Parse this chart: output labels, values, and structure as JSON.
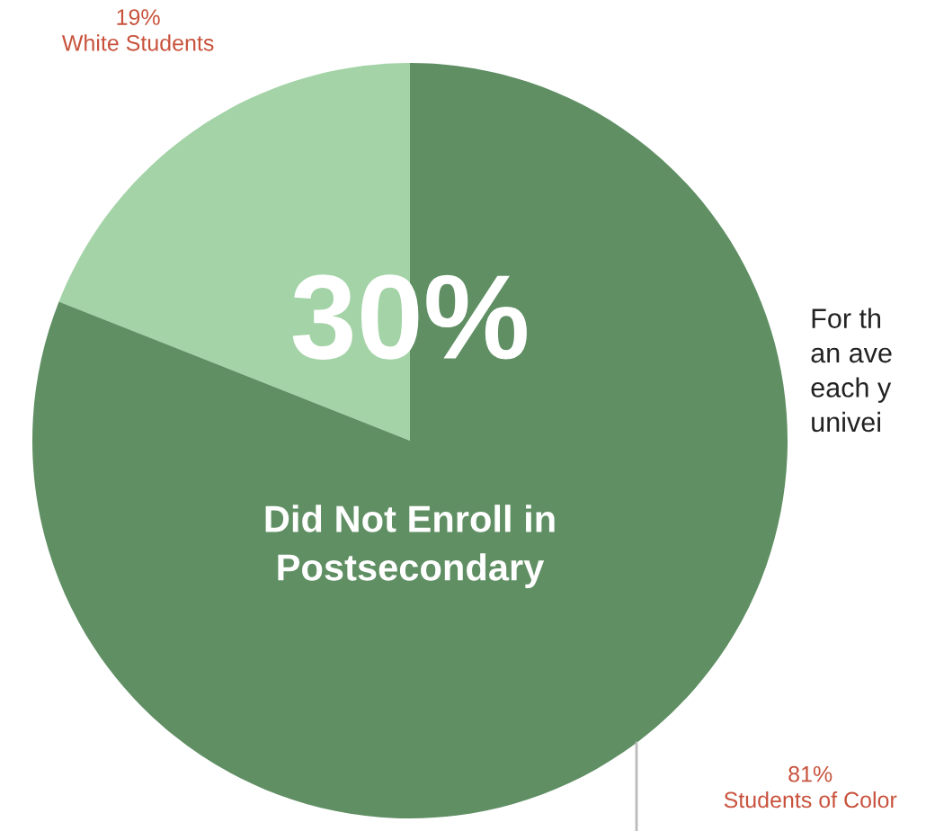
{
  "chart_data": {
    "type": "pie",
    "categories": [
      "White Students",
      "Students of Color"
    ],
    "values": [
      19,
      81
    ],
    "value_labels": [
      "19%",
      "81%"
    ],
    "colors": [
      "#a3d3a6",
      "#5f8f63"
    ],
    "annotations": [
      "30%",
      "Did Not Enroll in\nPostsecondary",
      "For th\nan ave\neach y\nunivei"
    ]
  }
}
